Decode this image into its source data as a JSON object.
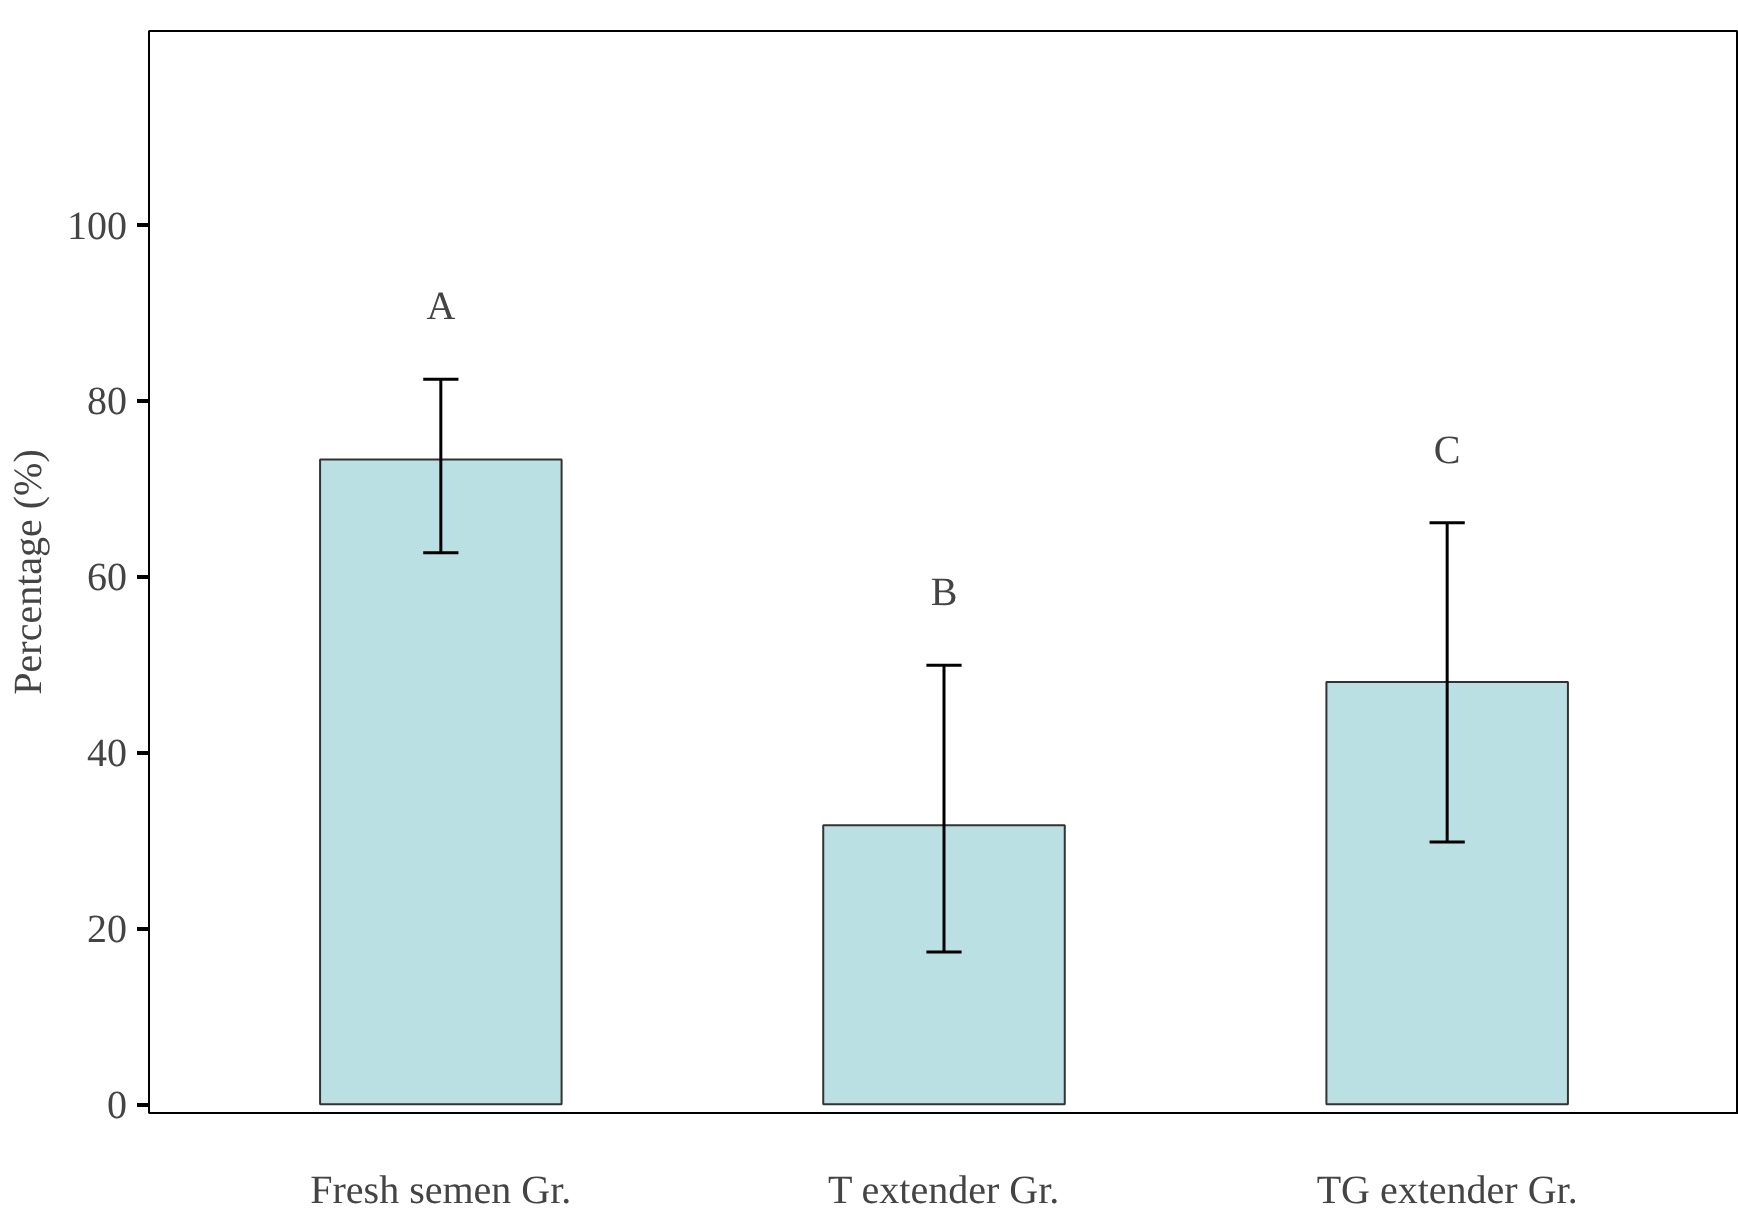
{
  "chart_data": {
    "type": "bar",
    "ylabel": "Percentage (%)",
    "categories": [
      "Fresh semen Gr.",
      "T extender Gr.",
      "TG extender Gr."
    ],
    "values": [
      73.3,
      31.7,
      48.0
    ],
    "color": "#bae0e3",
    "errors": [
      [
        62.7,
        82.4
      ],
      [
        17.3,
        49.9
      ],
      [
        29.8,
        66.1
      ]
    ],
    "ylim": [
      -1,
      122
    ],
    "yticks": [
      0,
      20,
      40,
      60,
      80,
      100
    ],
    "grid": false,
    "annotations": [
      "A",
      "B",
      "C"
    ]
  }
}
